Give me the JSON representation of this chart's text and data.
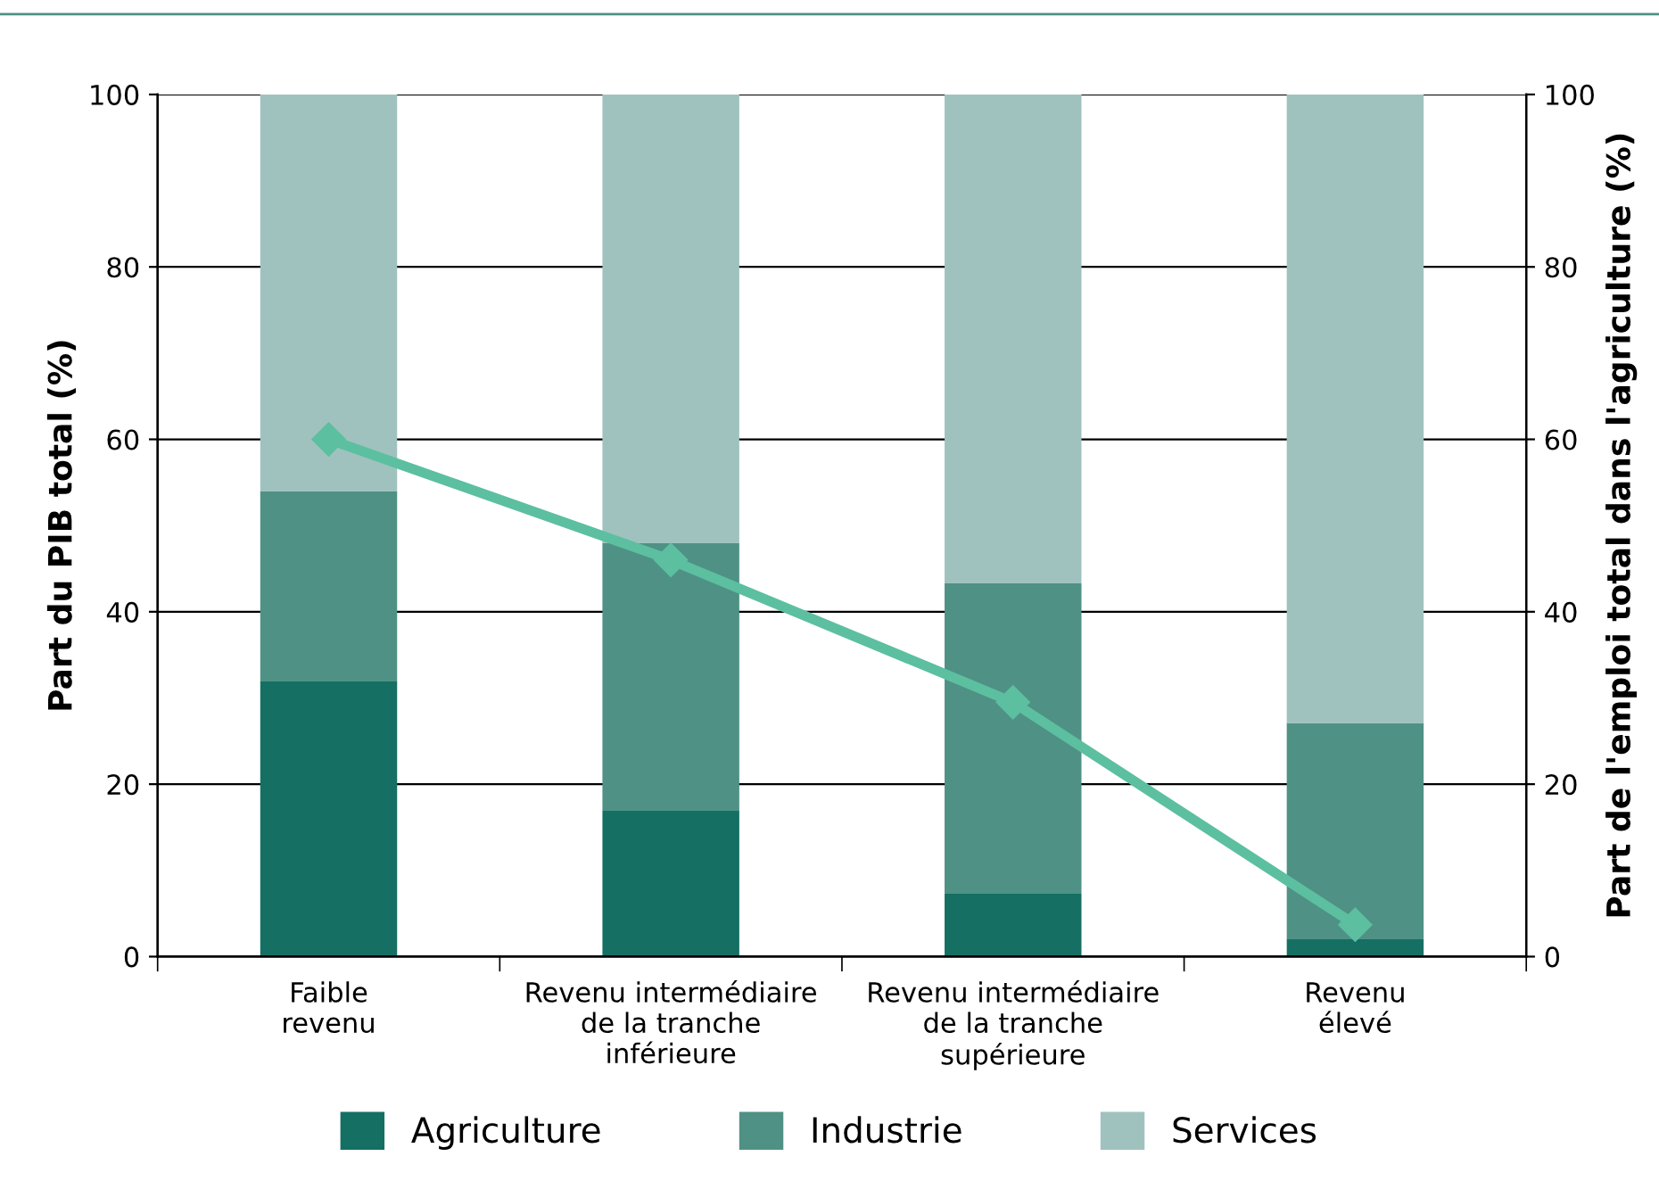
{
  "chart_data": {
    "type": "bar",
    "stacked": true,
    "categories": [
      "Faible\nrevenu",
      "Revenu intermédiaire\nde la tranche\ninférieure",
      "Revenu intermédiaire\nde la tranche\nsupérieure",
      "Revenu\nélevé"
    ],
    "ylabel": "Part du PIB total (%)",
    "y2label": "Part de l'emploi total dans l'agriculture (%)",
    "ylim": [
      0,
      100
    ],
    "yticks": [
      0,
      20,
      40,
      60,
      80,
      100
    ],
    "y2lim": [
      0,
      100
    ],
    "y2ticks": [
      0,
      20,
      40,
      60,
      80,
      100
    ],
    "grid": "y",
    "legend": "bottom",
    "series": [
      {
        "name": "Agriculture",
        "color": "#156f63",
        "values": [
          32,
          17,
          7.3,
          2.1
        ]
      },
      {
        "name": "Industrie",
        "color": "#4f9185",
        "values": [
          22,
          31,
          36,
          25
        ]
      },
      {
        "name": "Services",
        "color": "#9fc2bf",
        "values": [
          46,
          52,
          56.7,
          72.9
        ]
      },
      {
        "type": "line",
        "axis": "y2",
        "color": "#5cbfa0",
        "marker": "diamond",
        "values": [
          60,
          46,
          29.5,
          3.7
        ]
      }
    ]
  }
}
